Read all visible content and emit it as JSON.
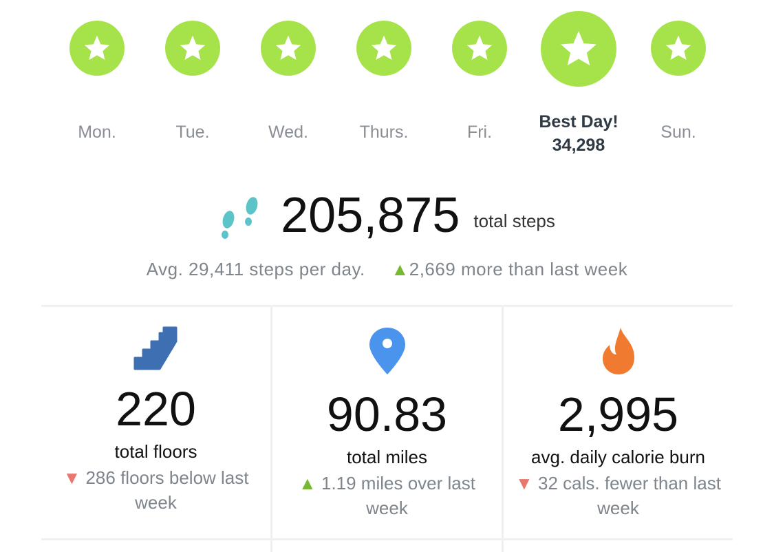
{
  "days": [
    {
      "label": "Mon.",
      "goal_met": true
    },
    {
      "label": "Tue.",
      "goal_met": true
    },
    {
      "label": "Wed.",
      "goal_met": true
    },
    {
      "label": "Thurs.",
      "goal_met": true
    },
    {
      "label": "Fri.",
      "goal_met": true
    },
    {
      "label": "Best Day!",
      "value": "34,298",
      "goal_met": true,
      "best": true
    },
    {
      "label": "Sun.",
      "goal_met": true
    }
  ],
  "steps": {
    "icon": "footprints-icon",
    "total": "205,875",
    "label": "total steps",
    "avg": "Avg. 29,411 steps per day.",
    "change": "2,669 more than last week",
    "change_direction": "up"
  },
  "stats": [
    {
      "icon": "stairs-icon",
      "value": "220",
      "label": "total floors",
      "change": "286 floors below last week",
      "direction": "down"
    },
    {
      "icon": "location-pin-icon",
      "value": "90.83",
      "label": "total miles",
      "change": "1.19 miles over last week",
      "direction": "up"
    },
    {
      "icon": "flame-icon",
      "value": "2,995",
      "label": "avg. daily calorie burn",
      "change": "32 cals. fewer than last week",
      "direction": "down"
    }
  ],
  "colors": {
    "goal": "#a6e34a",
    "up": "#79b833",
    "down": "#e8776e",
    "steps_icon": "#5cc3c9",
    "stairs": "#3f6fb3",
    "pin": "#4b94ee",
    "flame": "#f07a2f"
  }
}
